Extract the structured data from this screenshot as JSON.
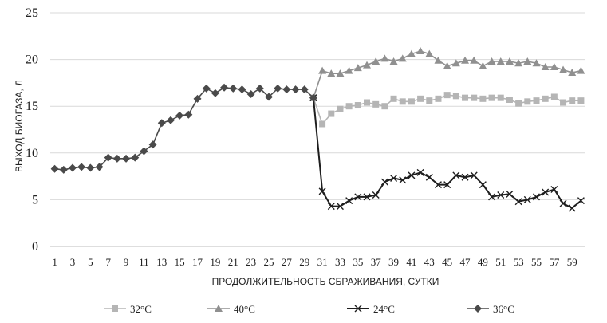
{
  "chart_data": {
    "type": "line",
    "xlabel": "ПРОДОЛЖИТЕЛЬНОСТЬ  СБРАЖИВАНИЯ, СУТКИ",
    "ylabel": "ВЫХОД  БИОГАЗА, Л",
    "ylim": [
      0,
      25
    ],
    "yticks": [
      0,
      5,
      10,
      15,
      20,
      25
    ],
    "xlim": [
      1,
      60
    ],
    "xticks": [
      1,
      3,
      5,
      7,
      9,
      11,
      13,
      15,
      17,
      19,
      21,
      23,
      25,
      27,
      29,
      31,
      33,
      35,
      37,
      39,
      41,
      43,
      45,
      47,
      49,
      51,
      53,
      55,
      57,
      59
    ],
    "grid": "horizontal",
    "legend_position": "bottom",
    "series": [
      {
        "name": "32°C",
        "color": "#b5b5b5",
        "marker": "square",
        "x": [
          30,
          31,
          32,
          33,
          34,
          35,
          36,
          37,
          38,
          39,
          40,
          41,
          42,
          43,
          44,
          45,
          46,
          47,
          48,
          49,
          50,
          51,
          52,
          53,
          54,
          55,
          56,
          57,
          58,
          59,
          60
        ],
        "values": [
          15.9,
          13.1,
          14.2,
          14.7,
          15.0,
          15.1,
          15.4,
          15.2,
          15.0,
          15.8,
          15.5,
          15.5,
          15.8,
          15.6,
          15.8,
          16.2,
          16.1,
          15.9,
          15.9,
          15.8,
          15.9,
          15.9,
          15.7,
          15.3,
          15.5,
          15.6,
          15.8,
          16.0,
          15.4,
          15.6,
          15.6
        ]
      },
      {
        "name": "40°C",
        "color": "#909090",
        "marker": "triangle",
        "x": [
          30,
          31,
          32,
          33,
          34,
          35,
          36,
          37,
          38,
          39,
          40,
          41,
          42,
          43,
          44,
          45,
          46,
          47,
          48,
          49,
          50,
          51,
          52,
          53,
          54,
          55,
          56,
          57,
          58,
          59,
          60
        ],
        "values": [
          15.9,
          18.8,
          18.5,
          18.5,
          18.8,
          19.1,
          19.4,
          19.8,
          20.1,
          19.8,
          20.1,
          20.6,
          20.9,
          20.6,
          19.9,
          19.3,
          19.6,
          19.9,
          19.9,
          19.3,
          19.8,
          19.8,
          19.8,
          19.6,
          19.8,
          19.6,
          19.2,
          19.2,
          18.9,
          18.6,
          18.8
        ]
      },
      {
        "name": "24°C",
        "color": "#1e1e1e",
        "marker": "x",
        "x": [
          30,
          31,
          32,
          33,
          34,
          35,
          36,
          37,
          38,
          39,
          40,
          41,
          42,
          43,
          44,
          45,
          46,
          47,
          48,
          49,
          50,
          51,
          52,
          53,
          54,
          55,
          56,
          57,
          58,
          59,
          60
        ],
        "values": [
          15.9,
          5.9,
          4.3,
          4.3,
          4.9,
          5.3,
          5.3,
          5.5,
          6.9,
          7.3,
          7.1,
          7.6,
          7.9,
          7.4,
          6.6,
          6.6,
          7.6,
          7.4,
          7.6,
          6.6,
          5.3,
          5.5,
          5.6,
          4.8,
          5.0,
          5.3,
          5.8,
          6.1,
          4.6,
          4.1,
          4.9
        ]
      },
      {
        "name": "36°C",
        "color": "#4a4a4a",
        "marker": "diamond",
        "x": [
          1,
          2,
          3,
          4,
          5,
          6,
          7,
          8,
          9,
          10,
          11,
          12,
          13,
          14,
          15,
          16,
          17,
          18,
          19,
          20,
          21,
          22,
          23,
          24,
          25,
          26,
          27,
          28,
          29,
          30
        ],
        "values": [
          8.3,
          8.2,
          8.4,
          8.5,
          8.4,
          8.5,
          9.5,
          9.4,
          9.4,
          9.5,
          10.2,
          10.9,
          13.2,
          13.5,
          14.0,
          14.1,
          15.8,
          16.9,
          16.4,
          17.0,
          16.9,
          16.8,
          16.3,
          16.9,
          16.0,
          16.9,
          16.8,
          16.8,
          16.8,
          15.9
        ]
      }
    ]
  }
}
